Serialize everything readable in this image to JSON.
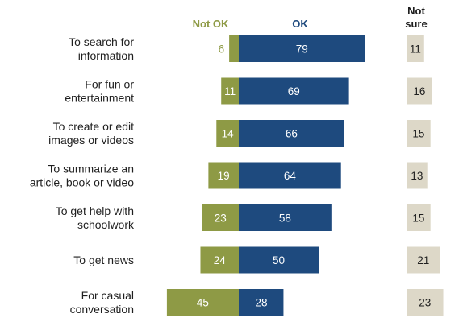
{
  "chart_data": {
    "type": "bar",
    "categories": [
      "To search for information",
      "For fun or entertainment",
      "To create or edit images or videos",
      "To summarize an article, book or video",
      "To get help with schoolwork",
      "To get news",
      "For casual conversation"
    ],
    "category_lines": [
      [
        "To search for",
        "information"
      ],
      [
        "For fun or",
        "entertainment"
      ],
      [
        "To create or edit",
        "images or videos"
      ],
      [
        "To summarize an",
        "article, book or video"
      ],
      [
        "To get help with",
        "schoolwork"
      ],
      [
        "To get news"
      ],
      [
        "For casual",
        "conversation"
      ]
    ],
    "series": [
      {
        "name": "Not OK",
        "values": [
          6,
          11,
          14,
          19,
          23,
          24,
          45
        ]
      },
      {
        "name": "OK",
        "values": [
          79,
          69,
          66,
          64,
          58,
          50,
          28
        ]
      },
      {
        "name": "Not sure",
        "values": [
          11,
          16,
          15,
          13,
          15,
          21,
          23
        ]
      }
    ],
    "header_lines": {
      "not_ok": [
        "Not OK"
      ],
      "ok": [
        "OK"
      ],
      "not_sure": [
        "Not",
        "sure"
      ]
    }
  },
  "colors": {
    "not_ok": "#8e9a45",
    "ok": "#1e4a7e",
    "not_sure": "#ddd8c8",
    "not_ok_header": "#8e9a45",
    "ok_header": "#1e4a7e",
    "not_sure_header": "#1f1f1f",
    "label_text": "#1f1f1f"
  }
}
